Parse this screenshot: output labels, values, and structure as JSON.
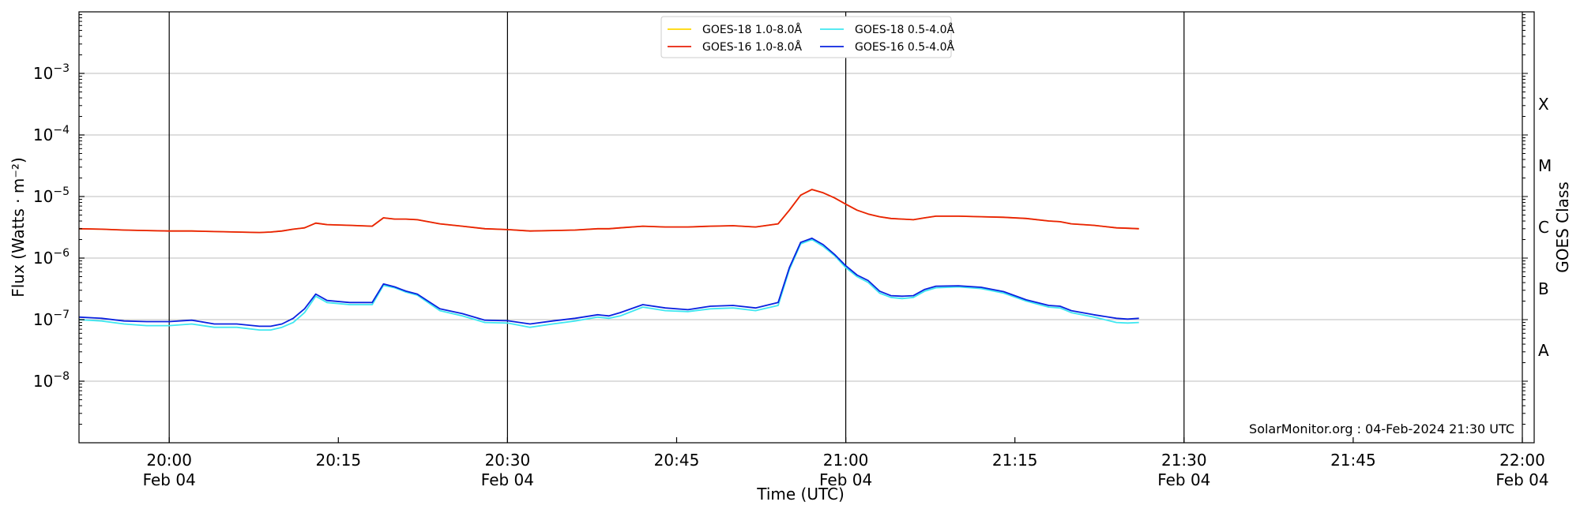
{
  "chart_data": {
    "type": "line",
    "title": "",
    "xlabel": "Time (UTC)",
    "ylabel": "Flux (Watts · m⁻²)",
    "y2label": "GOES Class",
    "yscale": "log",
    "ylim": [
      1e-09,
      0.01
    ],
    "xlim": [
      "19:52",
      "22:00"
    ],
    "grid": "horizontal",
    "legend_position": "top-center",
    "credit": "SolarMonitor.org : 04-Feb-2024 21:30 UTC",
    "x_ticks": [
      {
        "time": "20:00",
        "line1": "20:00",
        "line2": "Feb 04"
      },
      {
        "time": "20:15",
        "line1": "20:15",
        "line2": ""
      },
      {
        "time": "20:30",
        "line1": "20:30",
        "line2": "Feb 04"
      },
      {
        "time": "20:45",
        "line1": "20:45",
        "line2": ""
      },
      {
        "time": "21:00",
        "line1": "21:00",
        "line2": "Feb 04"
      },
      {
        "time": "21:15",
        "line1": "21:15",
        "line2": ""
      },
      {
        "time": "21:30",
        "line1": "21:30",
        "line2": "Feb 04"
      },
      {
        "time": "21:45",
        "line1": "21:45",
        "line2": ""
      },
      {
        "time": "22:00",
        "line1": "22:00",
        "line2": "Feb 04"
      }
    ],
    "vertical_lines": [
      "20:00",
      "20:30",
      "21:00",
      "21:30"
    ],
    "y_ticks": [
      {
        "exp": -8,
        "label": "10",
        "sup": "−8"
      },
      {
        "exp": -7,
        "label": "10",
        "sup": "−7"
      },
      {
        "exp": -6,
        "label": "10",
        "sup": "−6"
      },
      {
        "exp": -5,
        "label": "10",
        "sup": "−5"
      },
      {
        "exp": -4,
        "label": "10",
        "sup": "−4"
      },
      {
        "exp": -3,
        "label": "10",
        "sup": "−3"
      }
    ],
    "goes_classes": [
      {
        "label": "A",
        "exp": -7.5
      },
      {
        "label": "B",
        "exp": -6.5
      },
      {
        "label": "C",
        "exp": -5.5
      },
      {
        "label": "M",
        "exp": -4.5
      },
      {
        "label": "X",
        "exp": -3.5
      }
    ],
    "x": [
      "19:52",
      "19:54",
      "19:56",
      "19:58",
      "20:00",
      "20:02",
      "20:04",
      "20:06",
      "20:08",
      "20:09",
      "20:10",
      "20:11",
      "20:12",
      "20:13",
      "20:14",
      "20:16",
      "20:18",
      "20:19",
      "20:20",
      "20:21",
      "20:22",
      "20:24",
      "20:26",
      "20:28",
      "20:30",
      "20:32",
      "20:34",
      "20:36",
      "20:38",
      "20:39",
      "20:40",
      "20:42",
      "20:44",
      "20:46",
      "20:48",
      "20:50",
      "20:52",
      "20:54",
      "20:55",
      "20:56",
      "20:57",
      "20:58",
      "20:59",
      "21:00",
      "21:01",
      "21:02",
      "21:03",
      "21:04",
      "21:05",
      "21:06",
      "21:07",
      "21:08",
      "21:10",
      "21:12",
      "21:14",
      "21:16",
      "21:18",
      "21:19",
      "21:20",
      "21:22",
      "21:24",
      "21:25",
      "21:26"
    ],
    "series": [
      {
        "name": "GOES-18 1.0-8.0Å",
        "color": "#ffd700",
        "values": [
          3e-06,
          2.95e-06,
          2.85e-06,
          2.8e-06,
          2.75e-06,
          2.75e-06,
          2.7e-06,
          2.65e-06,
          2.6e-06,
          2.65e-06,
          2.75e-06,
          2.95e-06,
          3.1e-06,
          3.7e-06,
          3.5e-06,
          3.4e-06,
          3.3e-06,
          4.5e-06,
          4.3e-06,
          4.3e-06,
          4.2e-06,
          3.6e-06,
          3.3e-06,
          3e-06,
          2.9e-06,
          2.75e-06,
          2.8e-06,
          2.85e-06,
          3e-06,
          3e-06,
          3.1e-06,
          3.3e-06,
          3.2e-06,
          3.2e-06,
          3.3e-06,
          3.35e-06,
          3.2e-06,
          3.6e-06,
          6e-06,
          1.05e-05,
          1.3e-05,
          1.15e-05,
          9.5e-06,
          7.5e-06,
          6e-06,
          5.2e-06,
          4.7e-06,
          4.4e-06,
          4.3e-06,
          4.2e-06,
          4.5e-06,
          4.8e-06,
          4.8e-06,
          4.7e-06,
          4.6e-06,
          4.4e-06,
          4e-06,
          3.9e-06,
          3.6e-06,
          3.4e-06,
          3.1e-06,
          3.05e-06,
          3e-06
        ]
      },
      {
        "name": "GOES-16 1.0-8.0Å",
        "color": "#e8200a",
        "values": [
          3e-06,
          2.95e-06,
          2.85e-06,
          2.8e-06,
          2.75e-06,
          2.75e-06,
          2.7e-06,
          2.65e-06,
          2.6e-06,
          2.65e-06,
          2.75e-06,
          2.95e-06,
          3.1e-06,
          3.7e-06,
          3.5e-06,
          3.4e-06,
          3.3e-06,
          4.5e-06,
          4.3e-06,
          4.3e-06,
          4.2e-06,
          3.6e-06,
          3.3e-06,
          3e-06,
          2.9e-06,
          2.75e-06,
          2.8e-06,
          2.85e-06,
          3e-06,
          3e-06,
          3.1e-06,
          3.3e-06,
          3.2e-06,
          3.2e-06,
          3.3e-06,
          3.35e-06,
          3.2e-06,
          3.6e-06,
          6e-06,
          1.05e-05,
          1.3e-05,
          1.15e-05,
          9.5e-06,
          7.5e-06,
          6e-06,
          5.2e-06,
          4.7e-06,
          4.4e-06,
          4.3e-06,
          4.2e-06,
          4.5e-06,
          4.8e-06,
          4.8e-06,
          4.7e-06,
          4.6e-06,
          4.4e-06,
          4e-06,
          3.9e-06,
          3.6e-06,
          3.4e-06,
          3.1e-06,
          3.05e-06,
          3e-06
        ]
      },
      {
        "name": "GOES-18 0.5-4.0Å",
        "color": "#3fe7f0",
        "values": [
          1e-07,
          9.5e-08,
          8.5e-08,
          8e-08,
          8e-08,
          8.5e-08,
          7.5e-08,
          7.5e-08,
          6.8e-08,
          6.8e-08,
          7.5e-08,
          9e-08,
          1.3e-07,
          2.4e-07,
          1.9e-07,
          1.75e-07,
          1.75e-07,
          3.6e-07,
          3.3e-07,
          2.8e-07,
          2.5e-07,
          1.4e-07,
          1.15e-07,
          9e-08,
          8.8e-08,
          7.5e-08,
          8.5e-08,
          9.5e-08,
          1.1e-07,
          1.05e-07,
          1.15e-07,
          1.6e-07,
          1.4e-07,
          1.35e-07,
          1.5e-07,
          1.55e-07,
          1.4e-07,
          1.7e-07,
          6.5e-07,
          1.7e-06,
          2e-06,
          1.55e-06,
          1.1e-06,
          7e-07,
          5e-07,
          4e-07,
          2.7e-07,
          2.3e-07,
          2.2e-07,
          2.3e-07,
          2.9e-07,
          3.3e-07,
          3.4e-07,
          3.2e-07,
          2.7e-07,
          2e-07,
          1.6e-07,
          1.55e-07,
          1.3e-07,
          1.1e-07,
          9e-08,
          8.8e-08,
          9e-08
        ]
      },
      {
        "name": "GOES-16 0.5-4.0Å",
        "color": "#0a22e0",
        "values": [
          1.1e-07,
          1.05e-07,
          9.5e-08,
          9.3e-08,
          9.3e-08,
          9.8e-08,
          8.5e-08,
          8.5e-08,
          7.8e-08,
          7.8e-08,
          8.5e-08,
          1.05e-07,
          1.5e-07,
          2.6e-07,
          2.05e-07,
          1.9e-07,
          1.9e-07,
          3.8e-07,
          3.4e-07,
          2.9e-07,
          2.6e-07,
          1.5e-07,
          1.25e-07,
          9.8e-08,
          9.6e-08,
          8.5e-08,
          9.5e-08,
          1.05e-07,
          1.2e-07,
          1.15e-07,
          1.3e-07,
          1.75e-07,
          1.55e-07,
          1.45e-07,
          1.65e-07,
          1.7e-07,
          1.55e-07,
          1.9e-07,
          7e-07,
          1.8e-06,
          2.1e-06,
          1.65e-06,
          1.15e-06,
          7.5e-07,
          5.3e-07,
          4.3e-07,
          2.9e-07,
          2.45e-07,
          2.4e-07,
          2.45e-07,
          3.1e-07,
          3.5e-07,
          3.55e-07,
          3.35e-07,
          2.85e-07,
          2.1e-07,
          1.7e-07,
          1.65e-07,
          1.4e-07,
          1.2e-07,
          1.05e-07,
          1.02e-07,
          1.05e-07
        ]
      }
    ]
  }
}
